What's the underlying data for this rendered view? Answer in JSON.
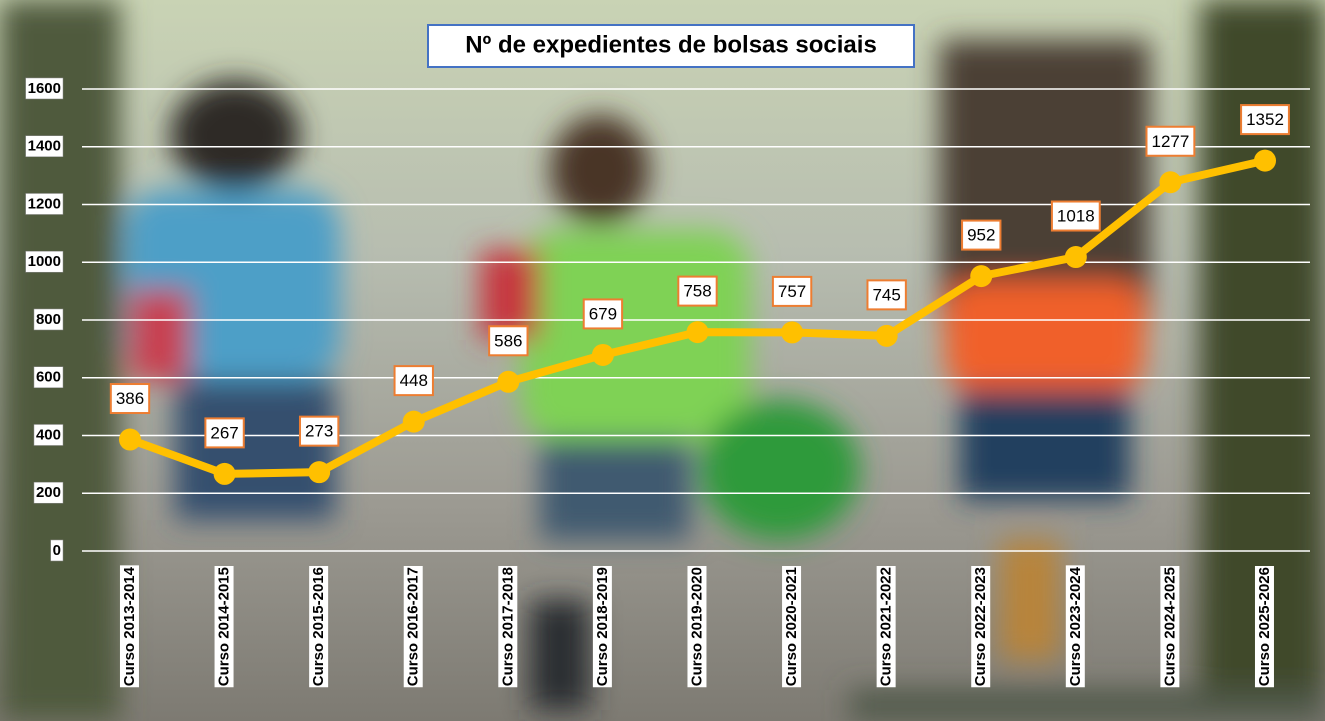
{
  "chart_data": {
    "type": "line",
    "title": "Nº de expedientes de bolsas sociais",
    "categories": [
      "Curso 2013-2014",
      "Curso 2014-2015",
      "Curso 2015-2016",
      "Curso 2016-2017",
      "Curso 2017-2018",
      "Curso 2018-2019",
      "Curso 2019-2020",
      "Curso 2020-2021",
      "Curso 2021-2022",
      "Curso 2022-2023",
      "Curso 2023-2024",
      "Curso 2024-2025",
      "Curso 2025-2026"
    ],
    "values": [
      386,
      267,
      273,
      448,
      586,
      679,
      758,
      757,
      745,
      952,
      1018,
      1277,
      1352
    ],
    "color": "#ffc000",
    "ylim": [
      0,
      1600
    ],
    "yticks": [
      0,
      200,
      400,
      600,
      800,
      1000,
      1200,
      1400,
      1600
    ],
    "grid": true
  }
}
